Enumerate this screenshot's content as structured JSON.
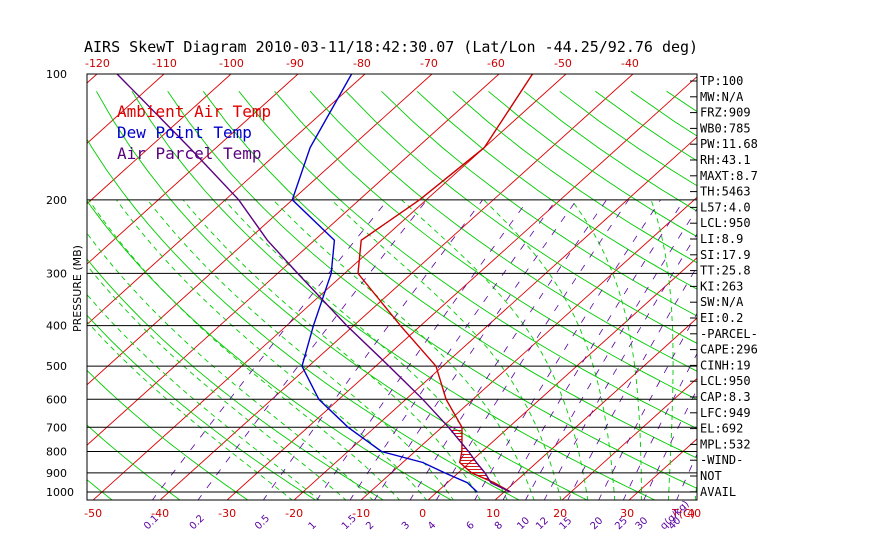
{
  "chart_data": {
    "type": "skewt",
    "title": "AIRS SkewT Diagram 2010-03-11/18:42:30.07 (Lat/Lon -44.25/92.76 deg)",
    "ylabel": "PRESSURE (MB)",
    "xlabel_unit": "T(C)",
    "mixing_unit": "q(g/kg)",
    "y_scale": "log",
    "ylim": [
      1050,
      100
    ],
    "pressure_ticks": [
      100,
      200,
      300,
      400,
      500,
      600,
      700,
      800,
      900,
      1000
    ],
    "top_temp_ticks": [
      -120,
      -110,
      -100,
      -90,
      -80,
      -70,
      -60,
      -50,
      -40
    ],
    "bottom_temp_ticks": [
      -50,
      -40,
      -30,
      -20,
      -10,
      0,
      10,
      20,
      30,
      40
    ],
    "mixing_ratio_ticks": [
      "0.1",
      "0.2",
      "0.5",
      "1",
      "1.5",
      "2",
      "3",
      "4",
      "6",
      "8",
      "10",
      "12",
      "15",
      "20",
      "25",
      "30",
      "40"
    ],
    "legend": [
      {
        "label": "Ambient Air Temp",
        "color": "#dd0000"
      },
      {
        "label": "Dew Point Temp",
        "color": "#0000cc"
      },
      {
        "label": "Air Parcel Temp",
        "color": "#5a0080"
      }
    ],
    "series": [
      {
        "name": "Ambient Air Temp",
        "color": "#cc0000",
        "points": [
          [
            1000,
            11
          ],
          [
            950,
            7
          ],
          [
            900,
            2
          ],
          [
            850,
            -1.5
          ],
          [
            800,
            -3
          ],
          [
            700,
            -7
          ],
          [
            600,
            -14
          ],
          [
            500,
            -21
          ],
          [
            400,
            -33
          ],
          [
            300,
            -48
          ],
          [
            250,
            -53
          ],
          [
            200,
            -51
          ],
          [
            150,
            -50
          ],
          [
            100,
            -55
          ]
        ]
      },
      {
        "name": "Dew Point Temp",
        "color": "#0000cc",
        "points": [
          [
            1000,
            6
          ],
          [
            950,
            3
          ],
          [
            900,
            -2
          ],
          [
            850,
            -7
          ],
          [
            800,
            -15
          ],
          [
            700,
            -24
          ],
          [
            600,
            -33
          ],
          [
            500,
            -41
          ],
          [
            400,
            -46
          ],
          [
            300,
            -52
          ],
          [
            250,
            -57
          ],
          [
            200,
            -70
          ],
          [
            150,
            -76
          ],
          [
            100,
            -82
          ]
        ]
      },
      {
        "name": "Air Parcel Temp",
        "color": "#5a0080",
        "points": [
          [
            1000,
            11
          ],
          [
            950,
            6.5
          ],
          [
            900,
            4
          ],
          [
            850,
            1
          ],
          [
            800,
            -2
          ],
          [
            700,
            -9
          ],
          [
            600,
            -17.5
          ],
          [
            500,
            -28
          ],
          [
            400,
            -41
          ],
          [
            300,
            -57
          ],
          [
            250,
            -67
          ],
          [
            200,
            -78
          ],
          [
            150,
            -94
          ],
          [
            100,
            -117
          ]
        ]
      }
    ],
    "indices": [
      "TP:100",
      "MW:N/A",
      "FRZ:909",
      "WB0:785",
      "PW:11.68",
      "RH:43.1",
      "MAXT:8.7",
      "TH:5463",
      "L57:4.0",
      "LCL:950",
      "LI:8.9",
      "SI:17.9",
      "TT:25.8",
      "KI:263",
      "SW:N/A",
      "EI:0.2",
      "-PARCEL-",
      "CAPE:296",
      "CINH:19",
      "LCL:950",
      "CAP:8.3",
      "LFC:949",
      "EL:692",
      "MPL:532",
      "-WIND-",
      "NOT",
      "AVAIL"
    ],
    "colors": {
      "isotherm": "#dd0000",
      "dry_adiabat": "#00cc00",
      "moist_adiabat": "#00cc00",
      "mixing_ratio": "#5a00a0",
      "isobar": "#000000"
    }
  }
}
